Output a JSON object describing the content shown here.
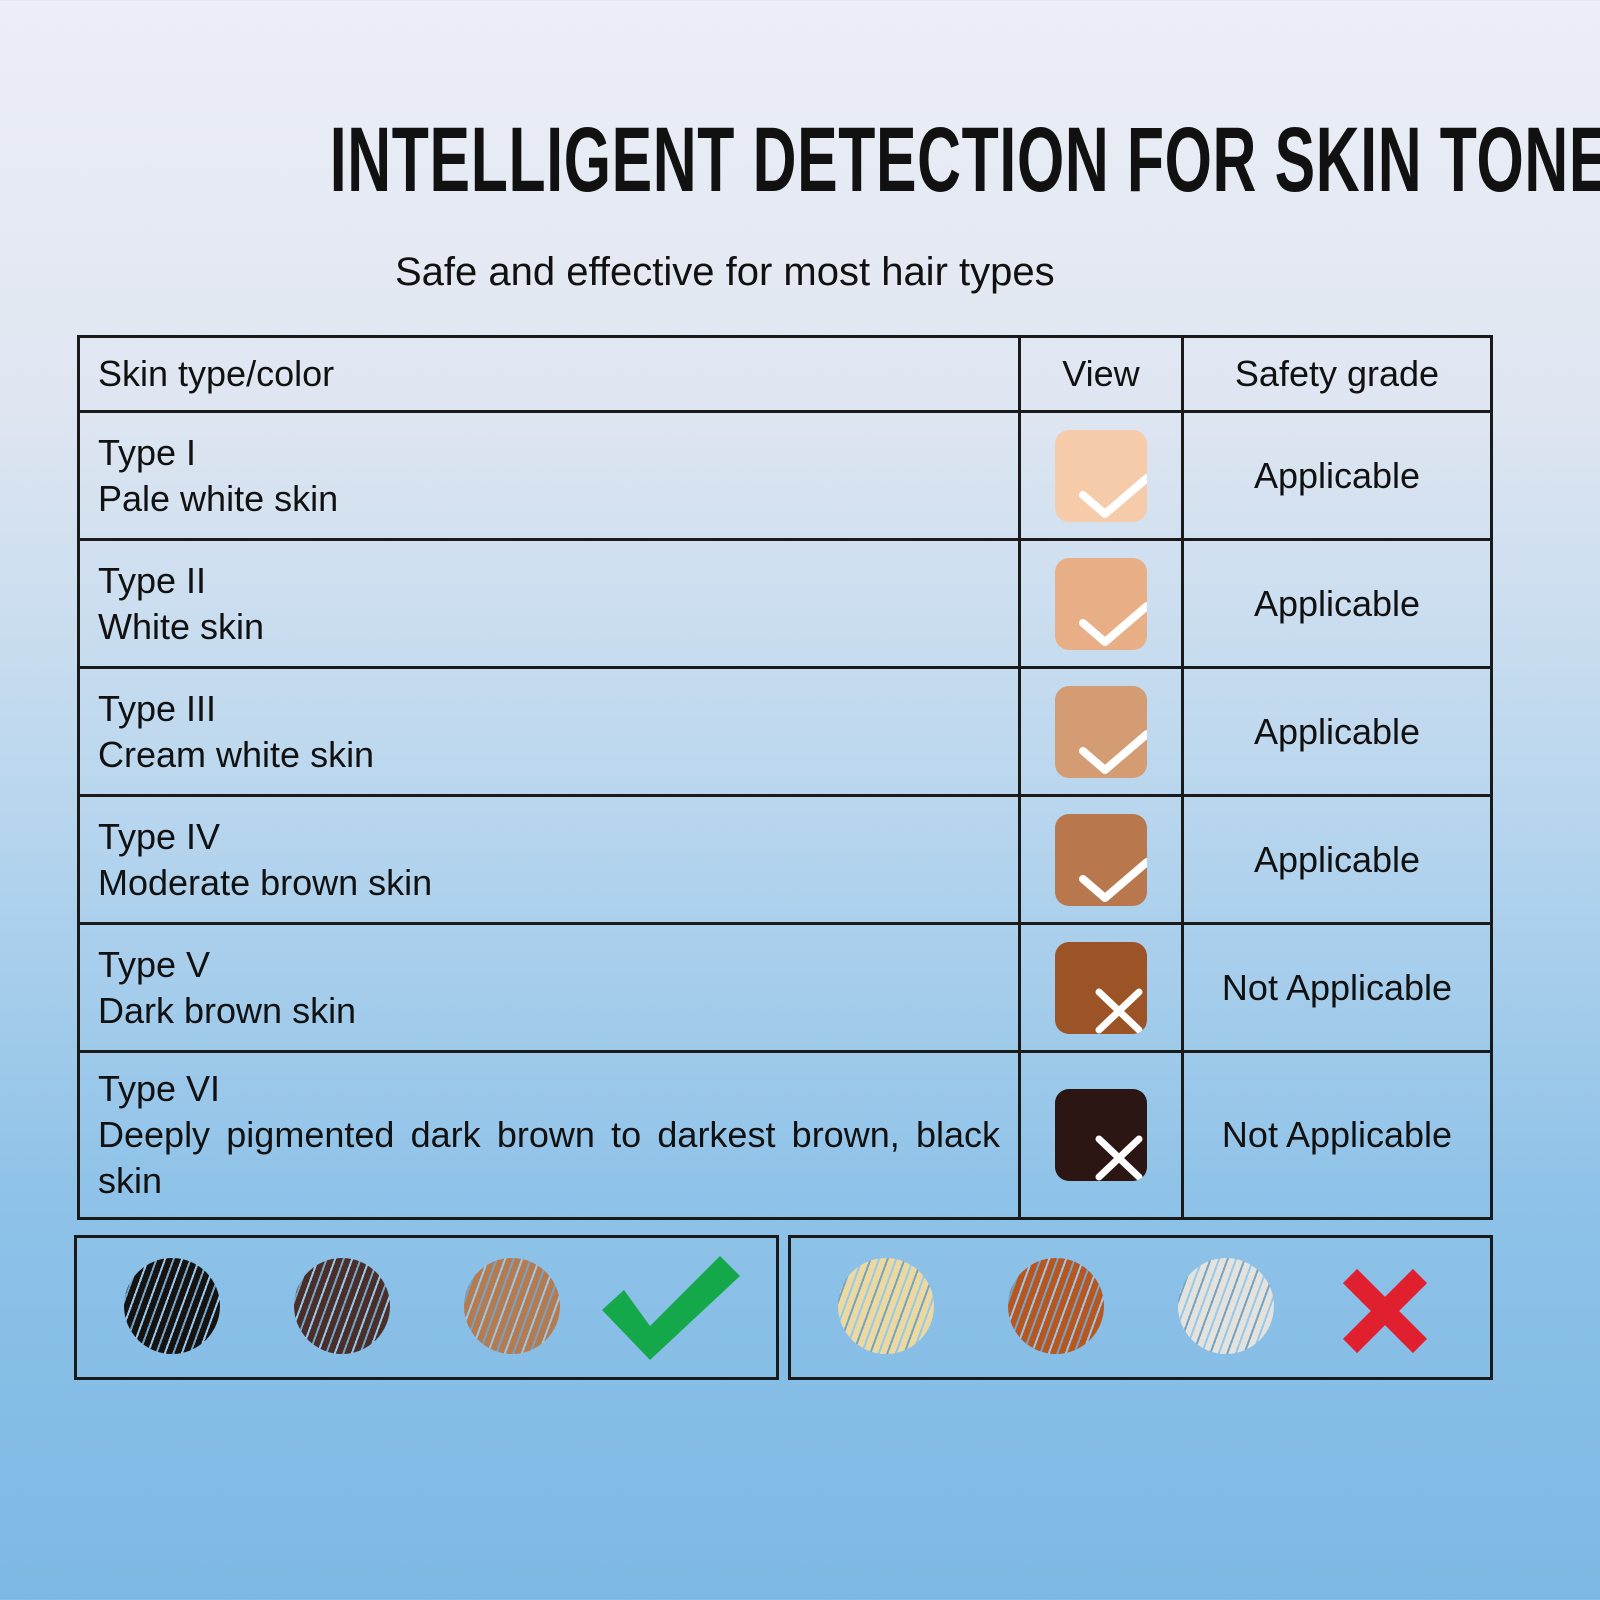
{
  "title": "INTELLIGENT DETECTION FOR SKIN TONE",
  "subtitle": "Safe and effective for most hair types",
  "table": {
    "headers": [
      "Skin type/color",
      "View",
      "Safety grade"
    ],
    "rows": [
      {
        "type": "Type I",
        "desc": "Pale white skin",
        "color": "#f6cbaa",
        "mark": "check",
        "grade": "Applicable"
      },
      {
        "type": "Type II",
        "desc": "White skin",
        "color": "#e8ae86",
        "mark": "check",
        "grade": "Applicable"
      },
      {
        "type": "Type III",
        "desc": "Cream white skin",
        "color": "#d49c72",
        "mark": "check",
        "grade": "Applicable"
      },
      {
        "type": "Type IV",
        "desc": "Moderate brown skin",
        "color": "#b8774c",
        "mark": "check",
        "grade": "Applicable"
      },
      {
        "type": "Type V",
        "desc": "Dark brown skin",
        "color": "#9c5427",
        "mark": "cross",
        "grade": "Not Applicable"
      },
      {
        "type": "Type VI",
        "desc": "Deeply pigmented dark brown to darkest brown, black skin",
        "color": "#2b1614",
        "mark": "cross",
        "grade": "Not Applicable"
      }
    ]
  },
  "hair": {
    "suitable": {
      "colors": [
        "#151212",
        "#4a2e2a",
        "#b67a4f"
      ],
      "mark": "check",
      "mark_color": "#15a84a"
    },
    "unsuitable": {
      "colors": [
        "#ecd9a0",
        "#b8561f",
        "#e4e2dc"
      ],
      "mark": "cross",
      "mark_color": "#e0202e"
    }
  }
}
